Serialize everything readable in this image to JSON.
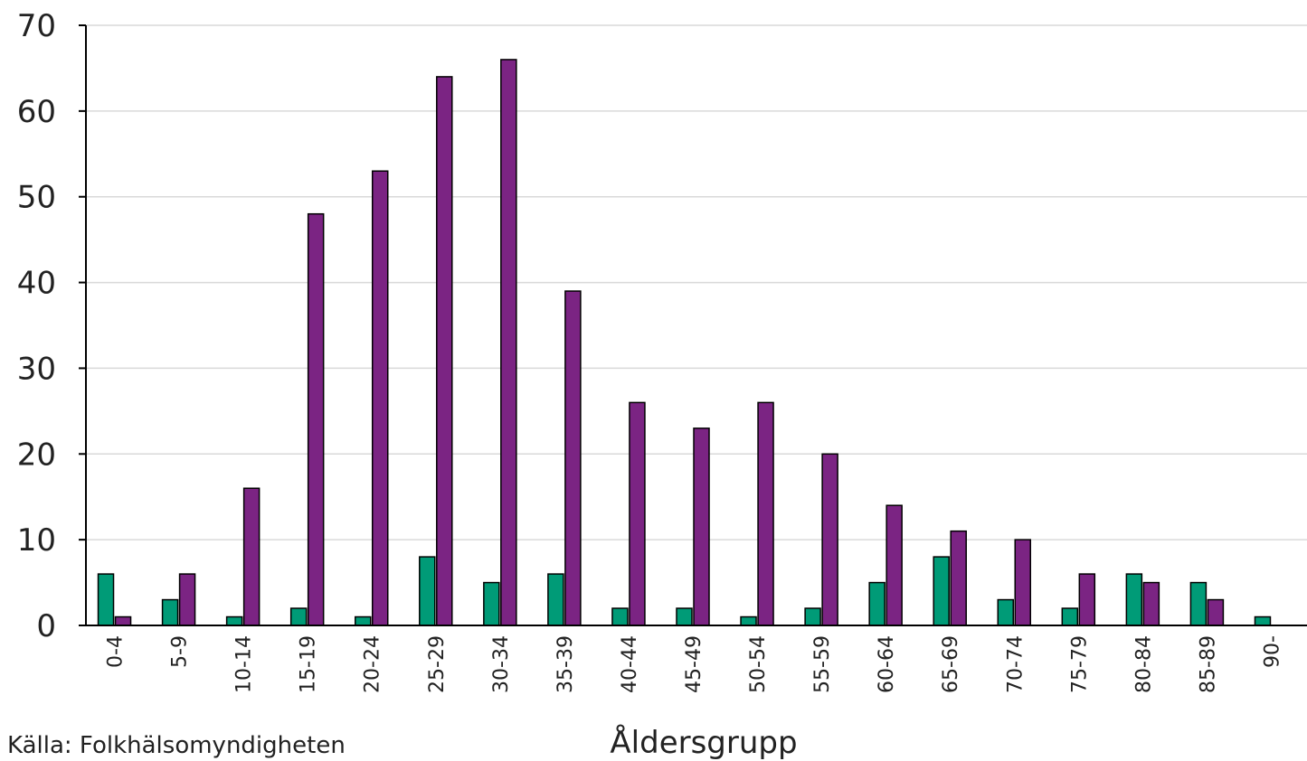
{
  "source_text": "Källa: Folkhälsomyndigheten",
  "chart_data": {
    "type": "bar",
    "xlabel": "Åldersgrupp",
    "ylabel": "",
    "ylim": [
      0,
      70
    ],
    "yticks": [
      0,
      10,
      20,
      30,
      40,
      50,
      60,
      70
    ],
    "grid": true,
    "legend": "none",
    "categories": [
      "0-4",
      "5-9",
      "10-14",
      "15-19",
      "20-24",
      "25-29",
      "30-34",
      "35-39",
      "40-44",
      "45-49",
      "50-54",
      "55-59",
      "60-64",
      "65-69",
      "70-74",
      "75-79",
      "80-84",
      "85-89",
      "90-"
    ],
    "series": [
      {
        "color": "#009b77",
        "values": [
          6,
          3,
          1,
          2,
          1,
          8,
          5,
          6,
          2,
          2,
          1,
          2,
          5,
          8,
          3,
          2,
          6,
          5,
          1
        ]
      },
      {
        "color": "#7b2483",
        "values": [
          1,
          6,
          16,
          48,
          53,
          64,
          66,
          39,
          26,
          23,
          26,
          20,
          14,
          11,
          10,
          6,
          5,
          3,
          null
        ]
      }
    ]
  }
}
